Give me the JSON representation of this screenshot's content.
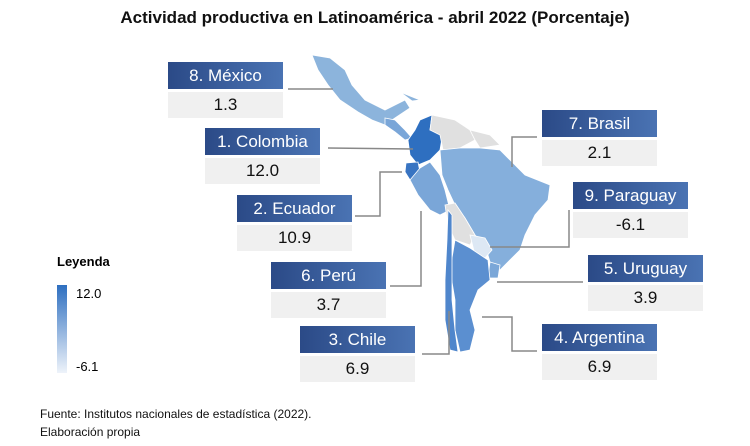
{
  "title": "Actividad productiva en Latinoamérica - abril 2022 (Porcentaje)",
  "countries": [
    {
      "label": "8. México",
      "value": "1.3",
      "color": "#8cb4dc"
    },
    {
      "label": "1. Colombia",
      "value": "12.0",
      "color": "#2e6fc0"
    },
    {
      "label": "2. Ecuador",
      "value": "10.9",
      "color": "#3874c2"
    },
    {
      "label": "6. Perú",
      "value": "3.7",
      "color": "#7aa6d8"
    },
    {
      "label": "3. Chile",
      "value": "6.9",
      "color": "#5b8fd0"
    },
    {
      "label": "7. Brasil",
      "value": "2.1",
      "color": "#85afdc"
    },
    {
      "label": "9. Paraguay",
      "value": "-6.1",
      "color": "#dde8f4"
    },
    {
      "label": "5. Uruguay",
      "value": "3.9",
      "color": "#7ba7d8"
    },
    {
      "label": "4. Argentina",
      "value": "6.9",
      "color": "#5b8fd0"
    }
  ],
  "legend": {
    "title": "Leyenda",
    "max": "12.0",
    "min": "-6.1"
  },
  "footer": {
    "source": "Fuente: Institutos nacionales de estadística (2022).",
    "note": "Elaboración propia"
  }
}
